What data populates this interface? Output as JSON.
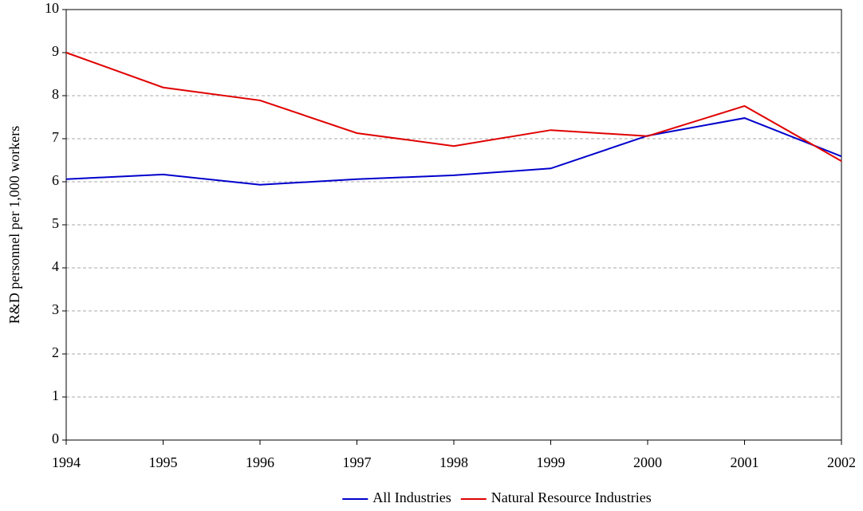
{
  "chart_data": {
    "type": "line",
    "y_label": "R&D personnel per 1,000 workers",
    "x": [
      1994,
      1995,
      1996,
      1997,
      1998,
      1999,
      2000,
      2001,
      2002
    ],
    "series": [
      {
        "name": "All Industries",
        "color": "#0000cc",
        "values": [
          6.06,
          6.17,
          5.93,
          6.06,
          6.15,
          6.31,
          7.07,
          7.48,
          6.59
        ]
      },
      {
        "name": "Natural Resource Industries",
        "color": "#e00000",
        "values": [
          9.0,
          8.19,
          7.89,
          7.13,
          6.83,
          7.2,
          7.06,
          7.76,
          6.48
        ]
      }
    ],
    "xlim": [
      1994,
      2002
    ],
    "xticks": [
      1994,
      1995,
      1996,
      1997,
      1998,
      1999,
      2000,
      2001,
      2002
    ],
    "ylim": [
      0,
      10
    ],
    "yticks": [
      0,
      1,
      2,
      3,
      4,
      5,
      6,
      7,
      8,
      9,
      10
    ],
    "grid": true,
    "legend": "bottom"
  }
}
